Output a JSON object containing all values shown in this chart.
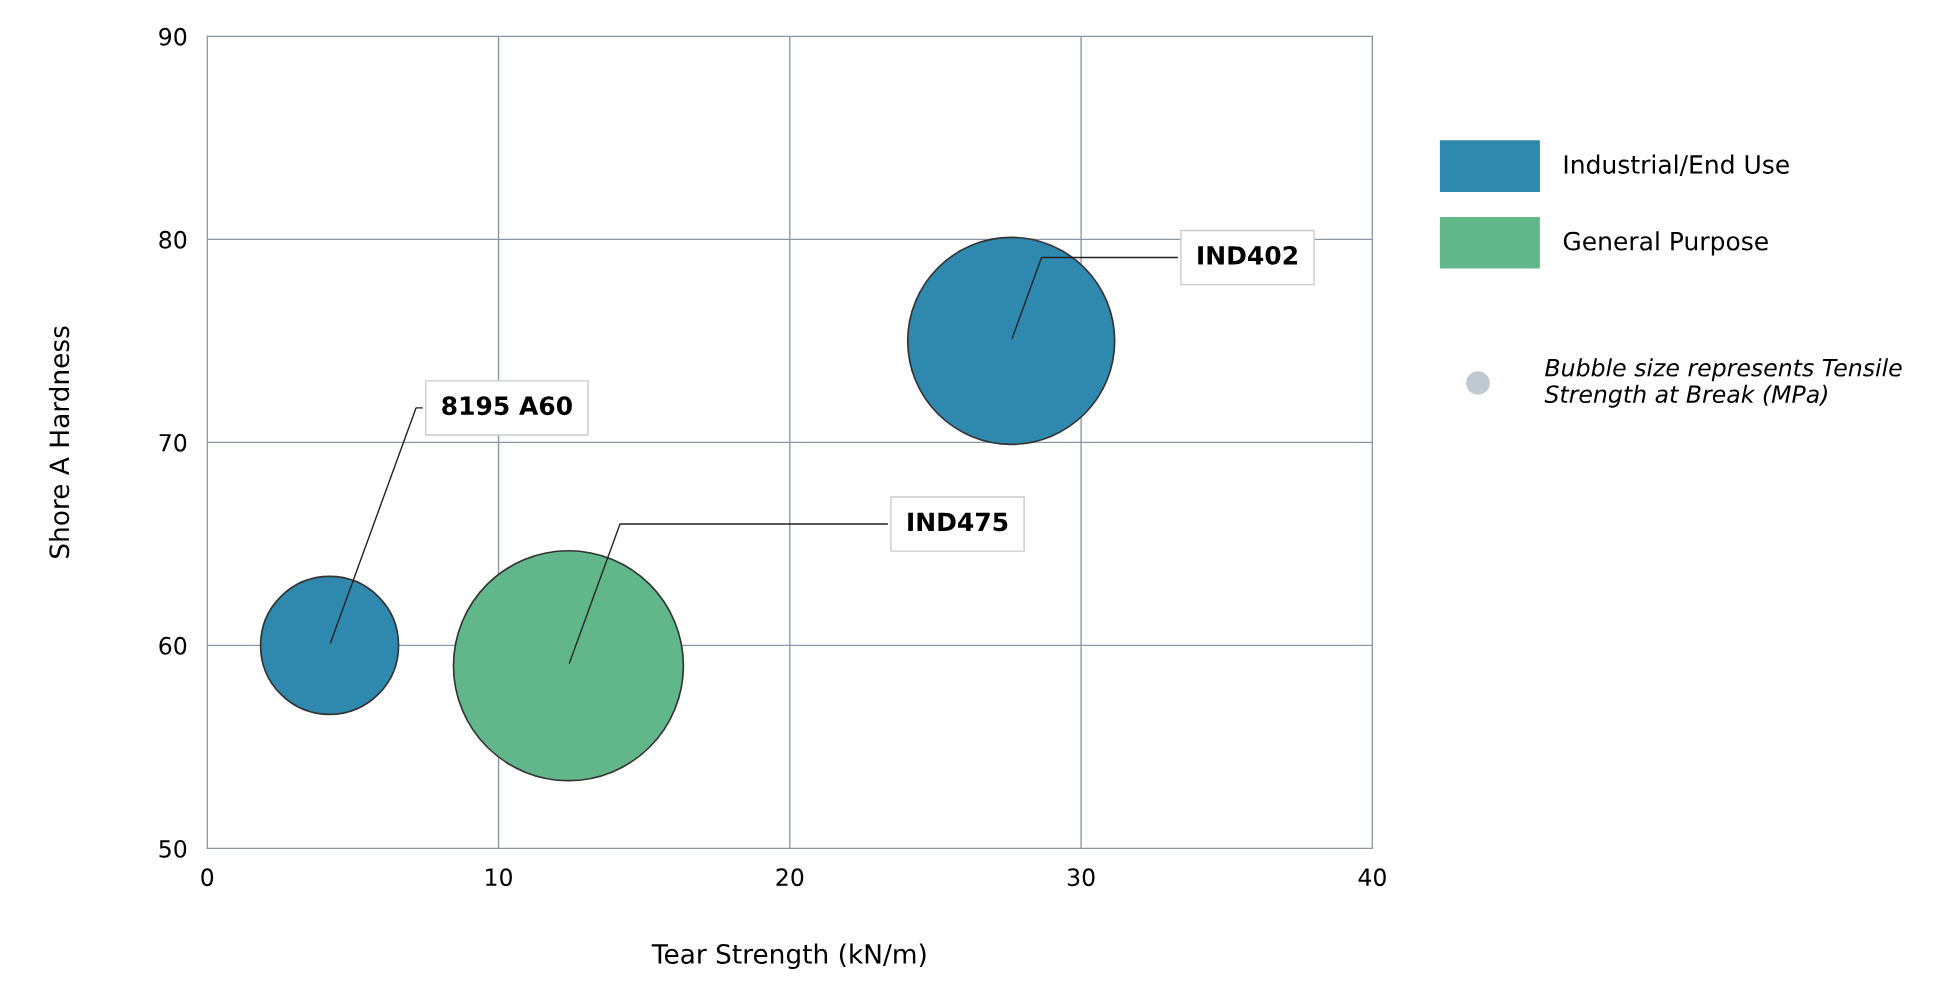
{
  "chart_data": {
    "type": "bubble",
    "xlabel": "Tear Strength (kN/m)",
    "ylabel": "Shore A Hardness",
    "xlim": [
      0,
      40
    ],
    "xticks": [
      0,
      10,
      20,
      30,
      40
    ],
    "ylim": [
      50,
      90
    ],
    "yticks": [
      50,
      60,
      70,
      80,
      90
    ],
    "grid": true,
    "legend": "right",
    "series": [
      {
        "name": "Industrial/End Use",
        "color": "#2f88ae",
        "x": [
          4.2,
          27.6
        ],
        "values": [
          60,
          75
        ],
        "sizes": [
          0.36,
          0.81
        ]
      },
      {
        "name": "General Purpose",
        "color": "#62b78a",
        "x": [
          12.4
        ],
        "values": [
          59
        ],
        "sizes": [
          1
        ]
      }
    ],
    "annotations": [
      {
        "text": "8195 A60",
        "x": 4.2,
        "y": 60
      },
      {
        "text": "IND475",
        "x": 12.4,
        "y": 59
      },
      {
        "text": "IND402",
        "x": 27.6,
        "y": 75
      },
      "Bubble size represents Tensile Strength at Break (MPa)"
    ]
  }
}
